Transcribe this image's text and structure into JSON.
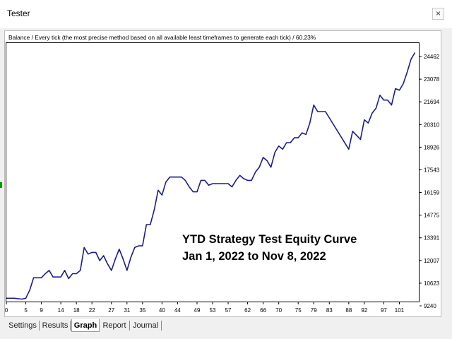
{
  "window": {
    "title": "Tester",
    "close_glyph": "×"
  },
  "chart_header": "Balance / Every tick (the most precise method based on all available least timeframes to generate each tick) / 60.23%",
  "annotation": {
    "line1": "YTD Strategy Test Equity Curve",
    "line2": "Jan 1, 2022 to Nov 8, 2022"
  },
  "tabs": [
    {
      "label": "Settings",
      "active": false
    },
    {
      "label": "Results",
      "active": false
    },
    {
      "label": "Graph",
      "active": true
    },
    {
      "label": "Report",
      "active": false
    },
    {
      "label": "Journal",
      "active": false
    }
  ],
  "chart_data": {
    "type": "line",
    "title": "",
    "xlabel": "",
    "ylabel": "",
    "line_color": "#1c1c8c",
    "x_ticks": [
      0,
      5,
      9,
      14,
      18,
      22,
      27,
      31,
      35,
      40,
      44,
      49,
      53,
      57,
      62,
      66,
      70,
      75,
      79,
      83,
      88,
      92,
      97,
      101
    ],
    "y_ticks": [
      9240,
      10623,
      12007,
      13391,
      14775,
      16159,
      17543,
      18926,
      20310,
      21694,
      23078,
      24462
    ],
    "xlim": [
      0,
      106
    ],
    "ylim": [
      9240,
      24462
    ],
    "x": [
      0,
      2,
      4,
      5,
      6,
      7,
      9,
      10,
      11,
      12,
      13,
      14,
      15,
      16,
      17,
      18,
      19,
      20,
      21,
      22,
      23,
      24,
      25,
      26,
      27,
      28,
      29,
      30,
      31,
      32,
      33,
      34,
      35,
      36,
      37,
      38,
      39,
      40,
      41,
      42,
      43,
      44,
      45,
      46,
      47,
      48,
      49,
      50,
      51,
      52,
      53,
      54,
      55,
      56,
      57,
      58,
      59,
      60,
      61,
      62,
      63,
      64,
      65,
      66,
      67,
      68,
      69,
      70,
      71,
      72,
      73,
      74,
      75,
      76,
      77,
      78,
      79,
      80,
      81,
      82,
      88,
      89,
      91,
      92,
      93,
      94,
      95,
      96,
      97,
      98,
      99,
      100,
      101,
      102,
      103,
      104,
      105
    ],
    "y": [
      9700,
      9700,
      9650,
      9700,
      10200,
      10950,
      10950,
      11200,
      11400,
      11000,
      11000,
      11000,
      11400,
      10900,
      11200,
      11200,
      11400,
      12800,
      12400,
      12500,
      12500,
      12000,
      12300,
      11800,
      11400,
      12100,
      12700,
      12100,
      11400,
      12200,
      12800,
      12900,
      12900,
      14200,
      14200,
      15100,
      16300,
      16000,
      16800,
      17100,
      17100,
      17100,
      17100,
      16900,
      16500,
      16200,
      16200,
      16900,
      16900,
      16600,
      16700,
      16700,
      16700,
      16700,
      16700,
      16500,
      16900,
      17200,
      17000,
      16900,
      16900,
      17400,
      17700,
      18300,
      18100,
      17700,
      18600,
      19000,
      18800,
      19200,
      19200,
      19500,
      19500,
      19800,
      19700,
      20400,
      21500,
      21100,
      21100,
      21100,
      18800,
      19900,
      19400,
      20600,
      20400,
      21000,
      21300,
      22100,
      21800,
      21800,
      21500,
      22500,
      22400,
      22800,
      23500,
      24300,
      24700
    ]
  }
}
